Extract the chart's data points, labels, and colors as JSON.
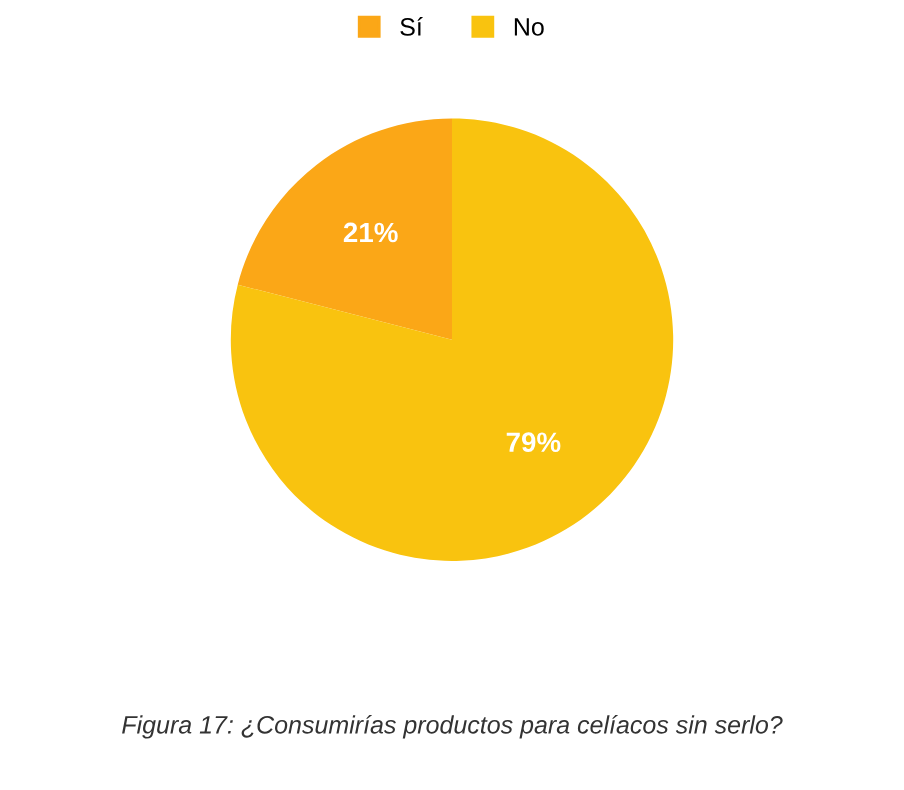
{
  "chart_data": {
    "type": "pie",
    "categories": [
      "Sí",
      "No"
    ],
    "values": [
      21,
      79
    ],
    "colors": [
      "#fba717",
      "#f9c30f"
    ],
    "value_labels": [
      "21%",
      "79%"
    ],
    "legend": "top",
    "annotations": [
      "Figura 17: ¿Consumirías productos para celíacos sin serlo?"
    ]
  }
}
